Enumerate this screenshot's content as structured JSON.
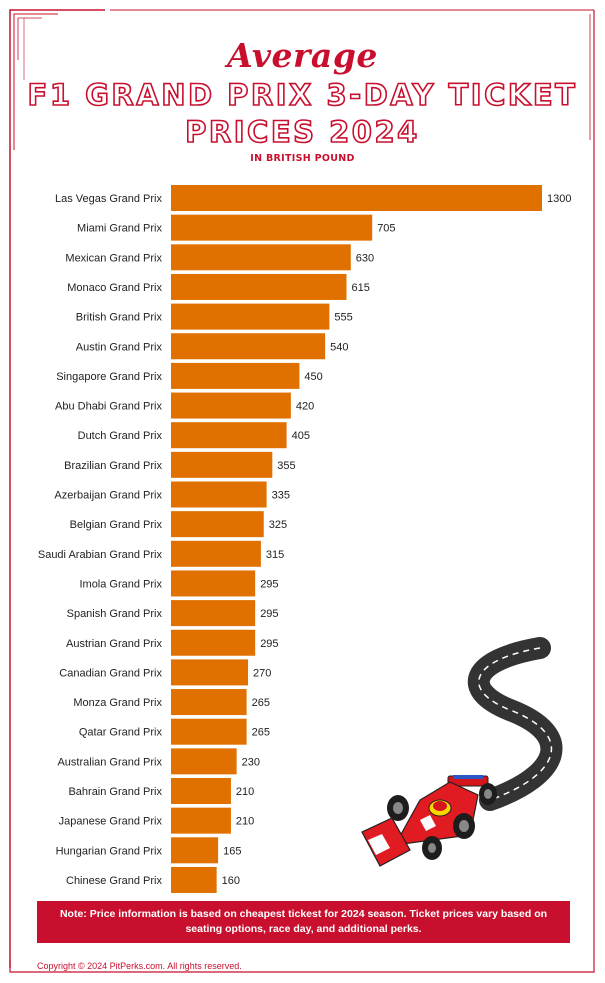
{
  "header": {
    "script_title": "Average",
    "title_line_1": "F1 GRAND PRIX 3-DAY TICKET",
    "title_line_2": "PRICES 2024",
    "subtitle": "IN BRITISH POUND"
  },
  "chart_data": {
    "type": "bar",
    "orientation": "horizontal",
    "title": "Average F1 Grand Prix 3-Day Ticket Prices 2024",
    "subtitle": "In British Pound",
    "categories": [
      "Las Vegas Grand Prix",
      "Miami Grand Prix",
      "Mexican Grand Prix",
      "Monaco Grand Prix",
      "British Grand Prix",
      "Austin Grand Prix",
      "Singapore Grand Prix",
      "Abu Dhabi Grand Prix",
      "Dutch Grand Prix",
      "Brazilian Grand Prix",
      "Azerbaijan Grand Prix",
      "Belgian Grand Prix",
      "Saudi Arabian Grand Prix",
      "Imola Grand Prix",
      "Spanish Grand Prix",
      "Austrian Grand Prix",
      "Canadian Grand Prix",
      "Monza Grand Prix",
      "Qatar Grand Prix",
      "Australian Grand Prix",
      "Bahrain Grand Prix",
      "Japanese Grand Prix",
      "Hungarian Grand Prix",
      "Chinese Grand Prix"
    ],
    "values": [
      1300,
      705,
      630,
      615,
      555,
      540,
      450,
      420,
      405,
      355,
      335,
      325,
      315,
      295,
      295,
      295,
      270,
      265,
      265,
      230,
      210,
      210,
      165,
      160
    ],
    "bar_color": "#e07000",
    "grid": false,
    "legend": "none"
  },
  "footer": {
    "note": "Note: Price information is based on cheapest tickest for 2024 season. Ticket prices vary based on seating options, race day, and additional perks.",
    "copyright": "Copyright  © 2024 PitPerks.com. All rights reserved."
  },
  "colors": {
    "accent": "#c8102e",
    "bar": "#e07000"
  },
  "icons": [
    "race-car-illustration",
    "winding-road-illustration"
  ]
}
